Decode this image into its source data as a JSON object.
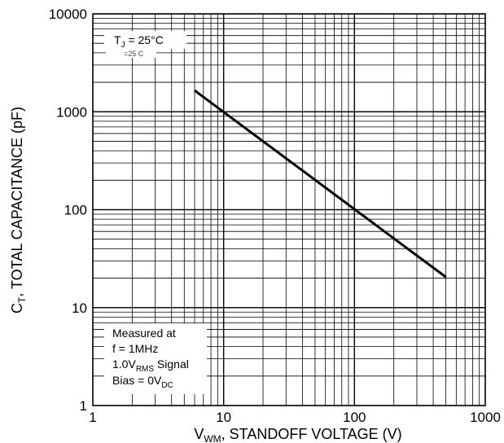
{
  "chart_data": {
    "type": "line",
    "xscale": "log",
    "yscale": "log",
    "xlim": [
      1,
      1000
    ],
    "ylim": [
      1,
      10000
    ],
    "grid": true,
    "x_ticks": [
      "1",
      "10",
      "100",
      "1000"
    ],
    "y_ticks": [
      "1",
      "10",
      "100",
      "1000",
      "10000"
    ],
    "xlabel": {
      "main": "V",
      "sub": "WM",
      "rest": ", STANDOFF VOLTAGE (V)"
    },
    "ylabel": {
      "main": "C",
      "sub": "T",
      "rest": ", TOTAL CAPACITANCE (pF)"
    },
    "series": [
      {
        "x": [
          6.0,
          500
        ],
        "y": [
          1650,
          20.5
        ]
      }
    ],
    "annotations": {
      "temp": {
        "main": "T",
        "sub": "J",
        "rest": " = 25°C"
      },
      "temp_ghost": "=25  C",
      "conditions": {
        "line1": "Measured at",
        "line2": "f = 1MHz",
        "line3": {
          "main": "1.0V",
          "sub": "RMS",
          "rest": " Signal"
        },
        "line4": {
          "main": "Bias = 0V",
          "sub": "DC",
          "rest": ""
        }
      }
    },
    "colors": {
      "line": "#000000",
      "grid": "#000000"
    }
  }
}
